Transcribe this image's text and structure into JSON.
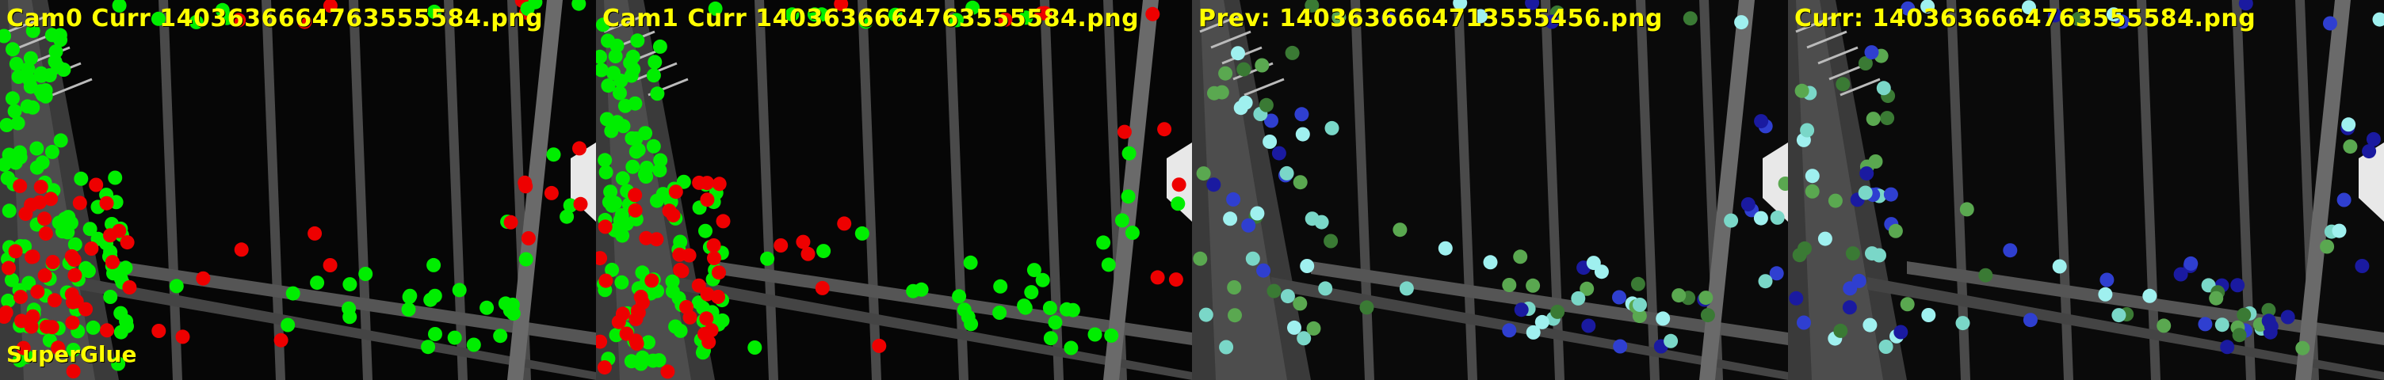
{
  "panels": [
    {
      "title": "Cam0 Curr 1403636664763555584.png"
    },
    {
      "title": "Cam1 Curr 1403636664763555584.png"
    },
    {
      "title": "Prev: 1403636664713555456.png"
    },
    {
      "title": "Curr: 1403636664763555584.png"
    }
  ],
  "footer_label": "SuperGlue",
  "colors": {
    "match": "#00ee00",
    "unmatched": "#ee0000",
    "track_dark": "#1a1aa0",
    "track_light": "#9ff0ef",
    "track_green": "#5aa850",
    "label": "#ffff00"
  }
}
